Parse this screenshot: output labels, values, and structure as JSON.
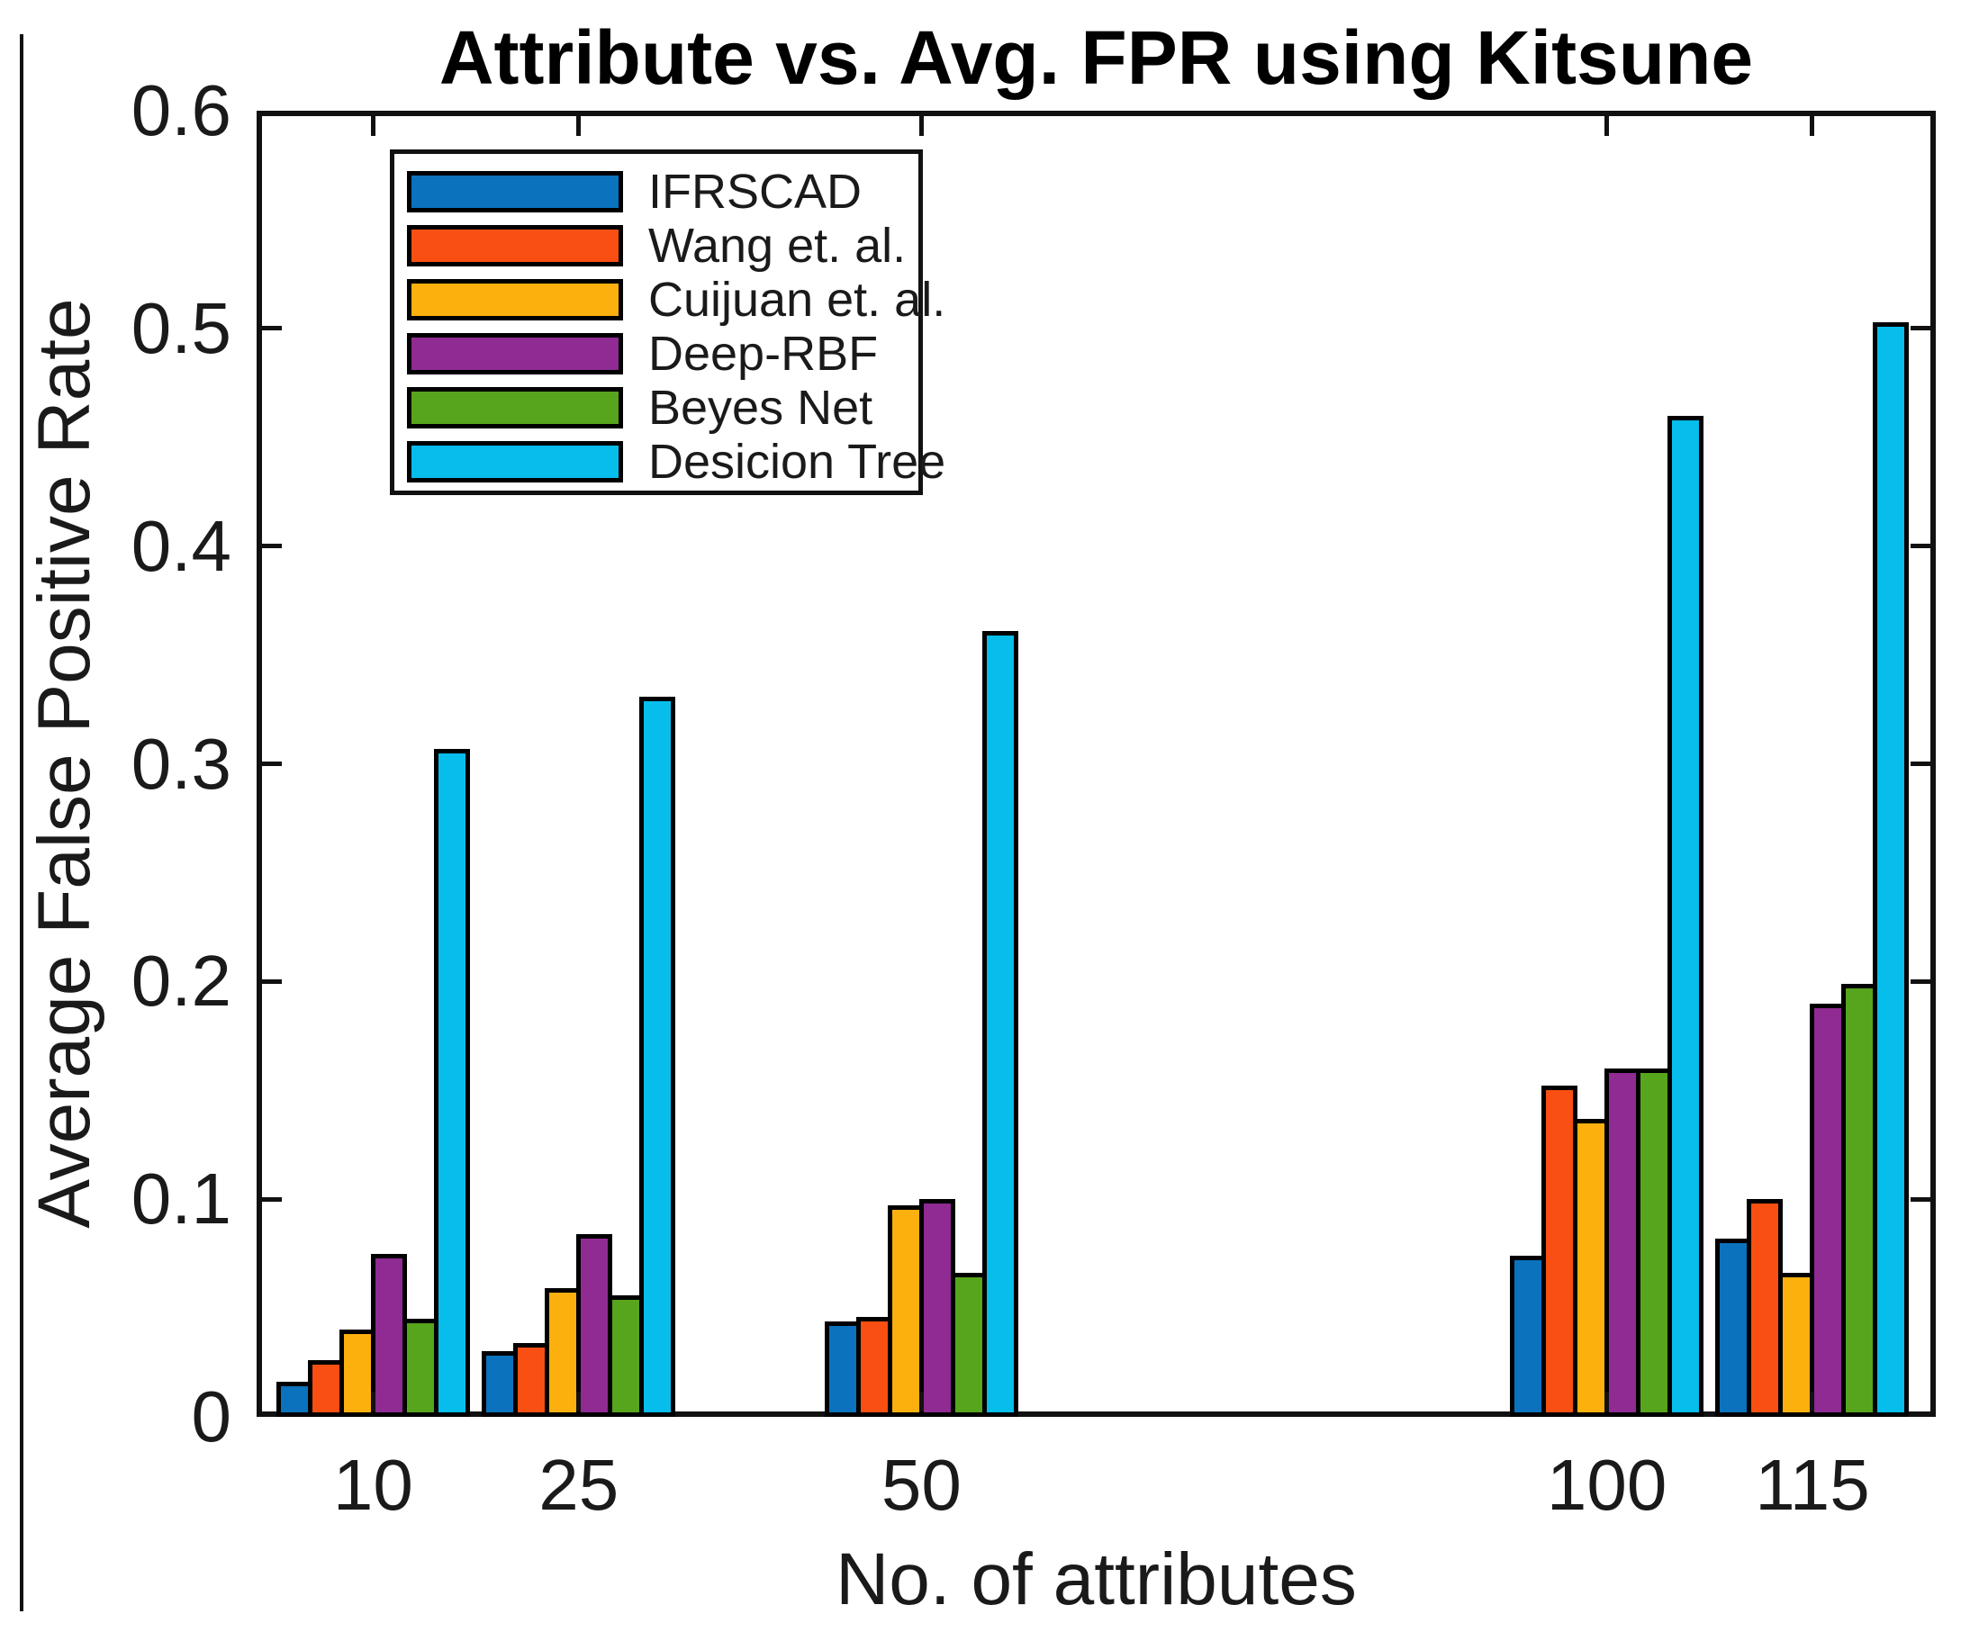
{
  "chart_data": {
    "type": "bar",
    "title": "Attribute vs. Avg. FPR using Kitsune",
    "xlabel": "No. of attributes",
    "ylabel": "Average False Positive Rate",
    "categories": [
      10,
      25,
      50,
      100,
      115
    ],
    "category_labels": [
      "10",
      "25",
      "50",
      "100",
      "115"
    ],
    "series": [
      {
        "name": "IFRSCAD",
        "color": "#0b72bd",
        "values": [
          0.016,
          0.03,
          0.044,
          0.074,
          0.082
        ]
      },
      {
        "name": "Wang et. al.",
        "color": "#f94f12",
        "values": [
          0.026,
          0.034,
          0.046,
          0.152,
          0.1
        ]
      },
      {
        "name": "Cuijuan et. al.",
        "color": "#fcb00e",
        "values": [
          0.04,
          0.059,
          0.097,
          0.137,
          0.066
        ]
      },
      {
        "name": "Deep-RBF",
        "color": "#8f2b92",
        "values": [
          0.075,
          0.084,
          0.1,
          0.16,
          0.19
        ]
      },
      {
        "name": "Beyes Net",
        "color": "#57a41d",
        "values": [
          0.045,
          0.056,
          0.066,
          0.16,
          0.199
        ]
      },
      {
        "name": "Desicion Tree",
        "color": "#07bdec",
        "values": [
          0.307,
          0.331,
          0.361,
          0.46,
          0.503
        ]
      }
    ],
    "ylim": [
      0,
      0.6
    ],
    "yticks": [
      0,
      0.1,
      0.2,
      0.3,
      0.4,
      0.5,
      0.6
    ],
    "ytick_labels": [
      "0",
      "0.1",
      "0.2",
      "0.3",
      "0.4",
      "0.5",
      "0.6"
    ],
    "xlim": [
      1.5,
      124
    ],
    "x_axis_numeric": true,
    "grid": false,
    "legend_position": "upper-left-inside",
    "bar_edge_color": "#000000",
    "axis_color": "#111111"
  }
}
